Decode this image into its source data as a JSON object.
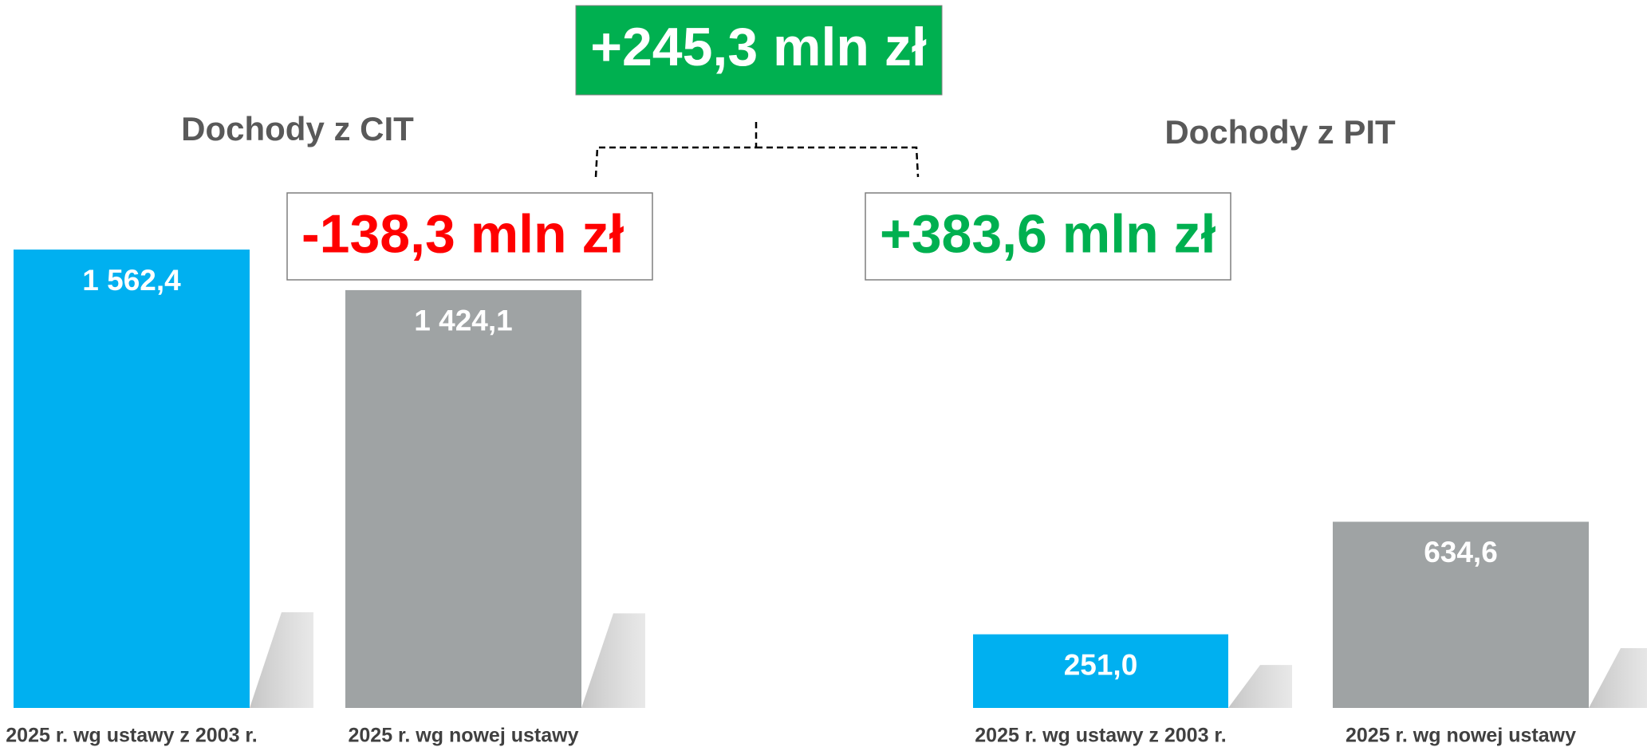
{
  "summary": "+245,3 mln zł",
  "chart_data": [
    {
      "type": "bar",
      "title": "Dochody z CIT",
      "categories": [
        "2025 r. wg ustawy z 2003 r.",
        "2025 r. wg nowej ustawy"
      ],
      "values": [
        1562.4,
        1424.1
      ],
      "value_labels": [
        "1 562,4",
        "1 424,1"
      ],
      "colors": [
        "#00b0f0",
        "#9fa3a4"
      ],
      "annotation": "-138,3 mln zł",
      "annotation_color": "#ff0000"
    },
    {
      "type": "bar",
      "title": "Dochody z PIT",
      "categories": [
        "2025 r. wg ustawy z 2003 r.",
        "2025 r. wg nowej ustawy"
      ],
      "values": [
        251.0,
        634.6
      ],
      "value_labels": [
        "251,0",
        "634,6"
      ],
      "colors": [
        "#00b0f0",
        "#9fa3a4"
      ],
      "annotation": "+383,6 mln zł",
      "annotation_color": "#00b050"
    }
  ]
}
